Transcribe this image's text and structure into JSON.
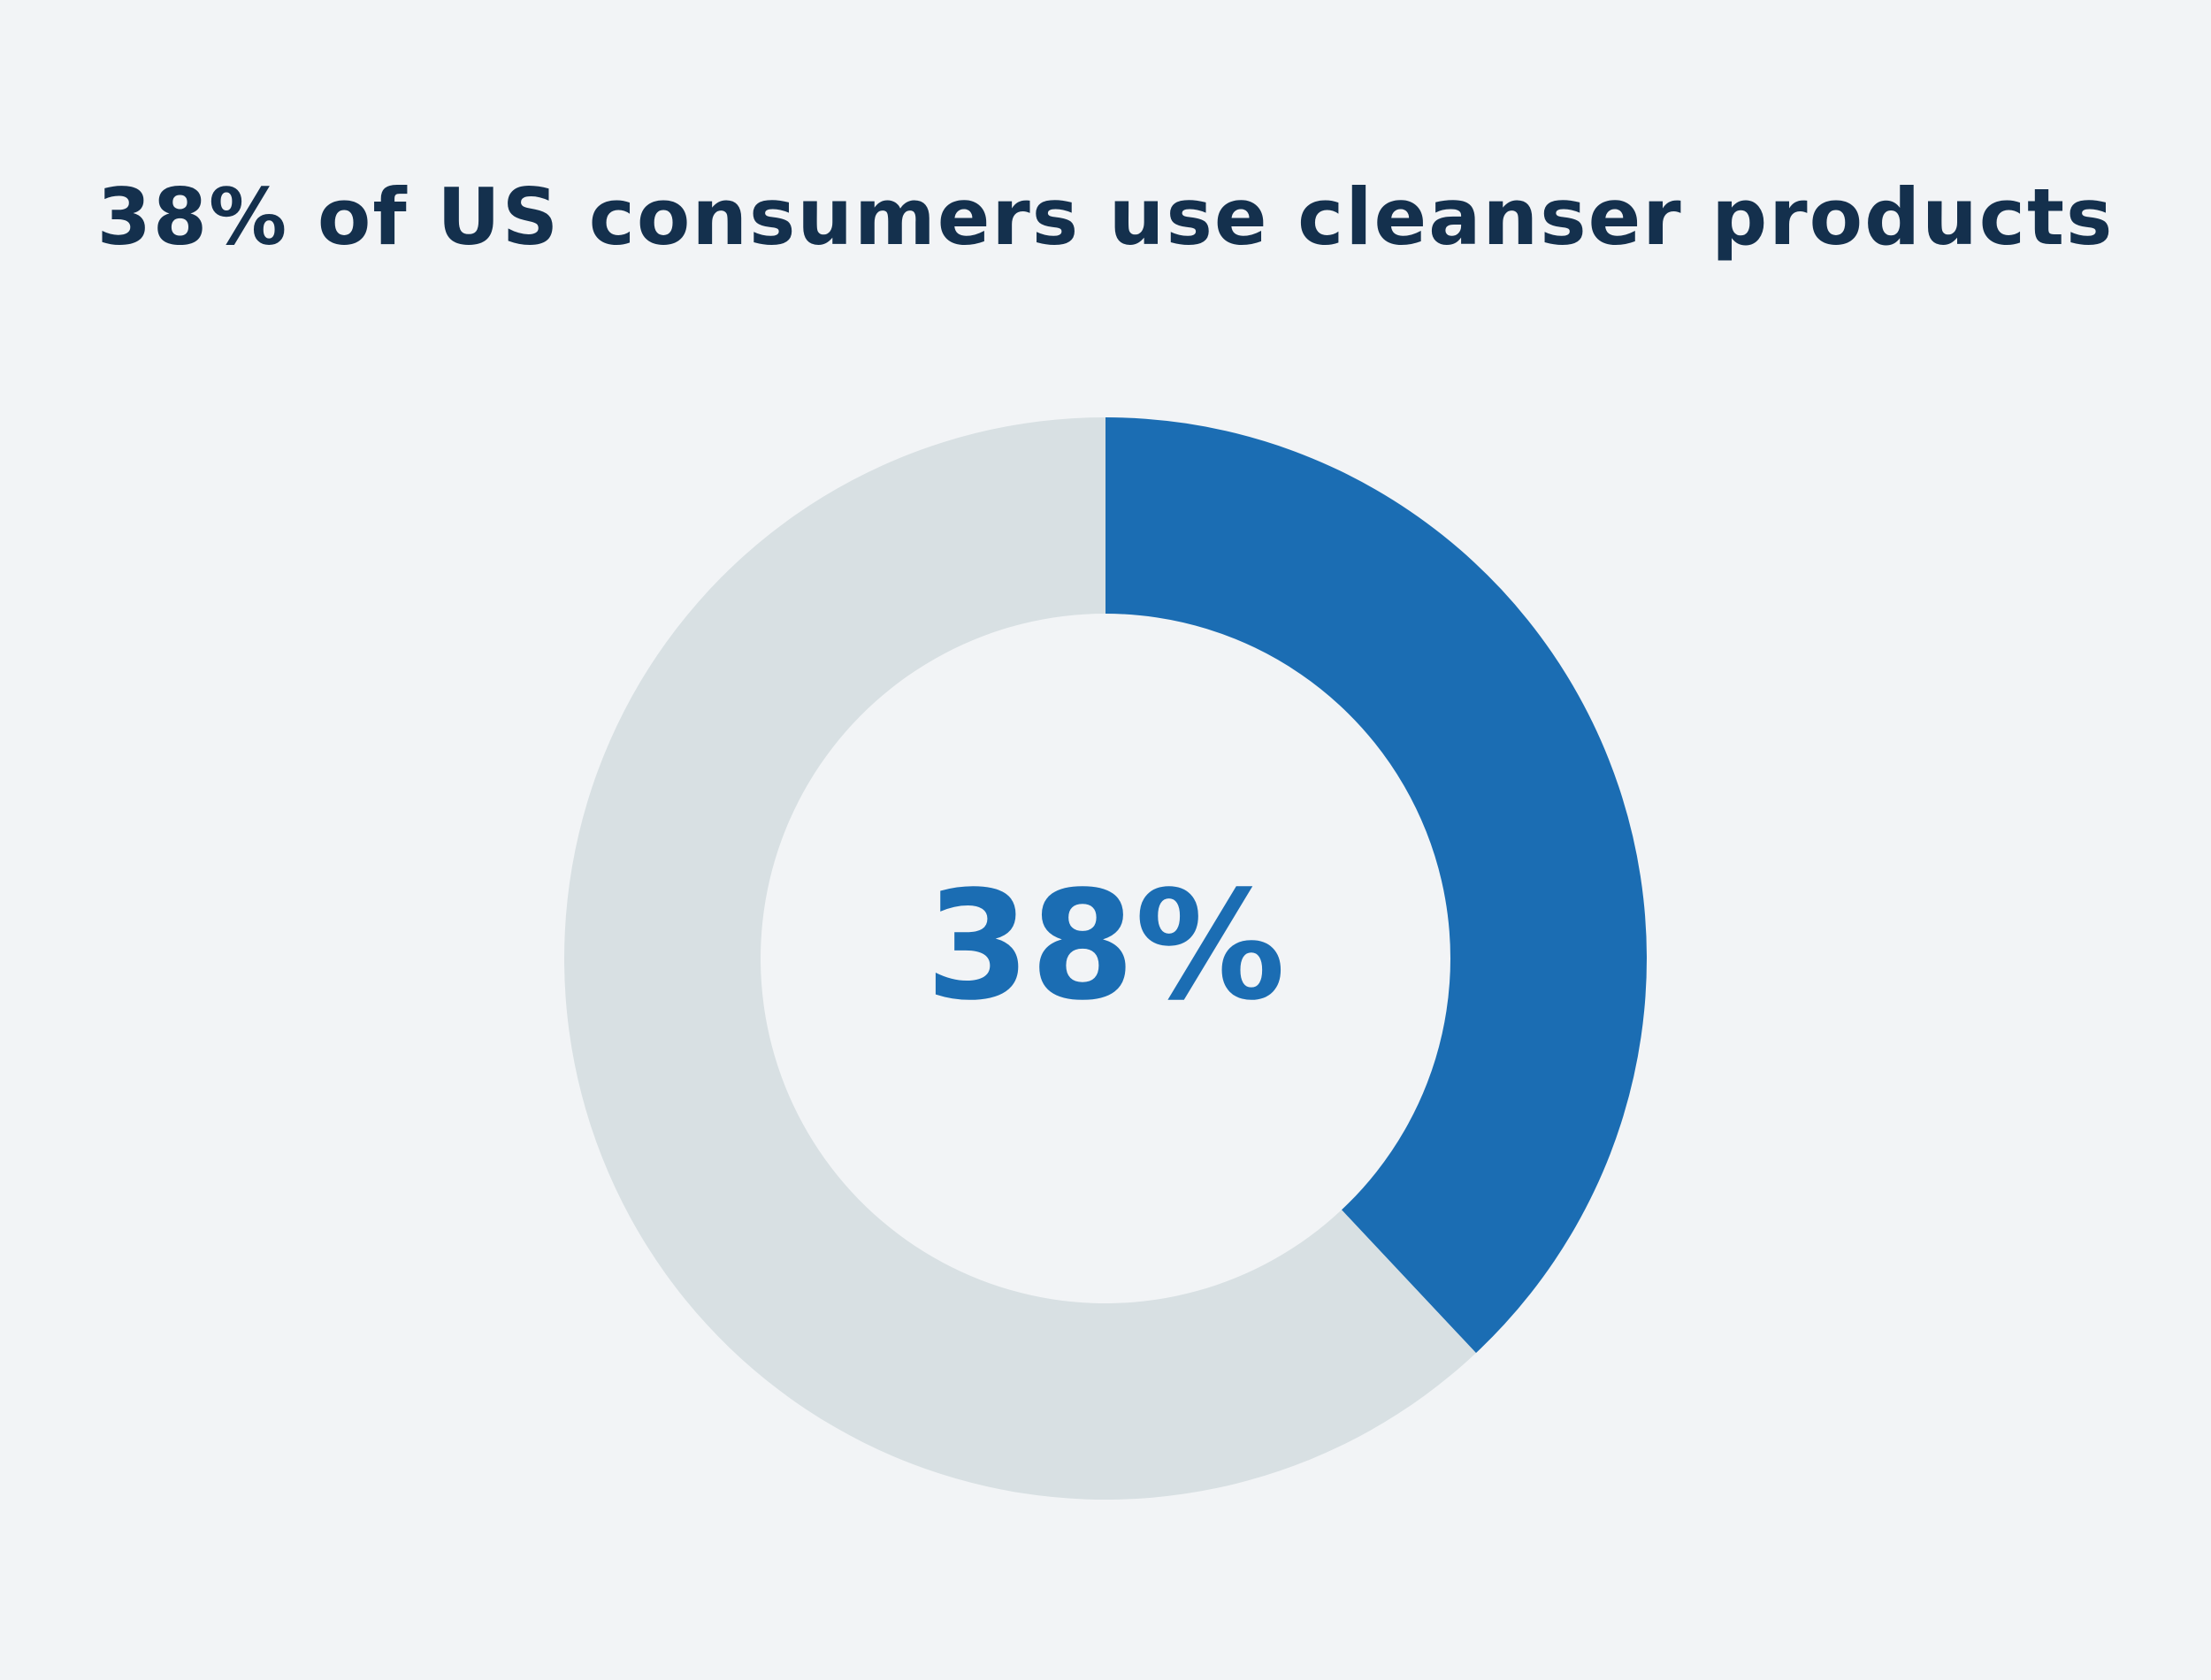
{
  "chart_data": {
    "type": "donut",
    "title": "38% of US consumers use cleanser products",
    "values": [
      38,
      62
    ],
    "value_labels": [
      "38%",
      null
    ],
    "colors": [
      "#1b6db3",
      "#d8e0e3"
    ],
    "center_label_color": "#1b6db3"
  }
}
